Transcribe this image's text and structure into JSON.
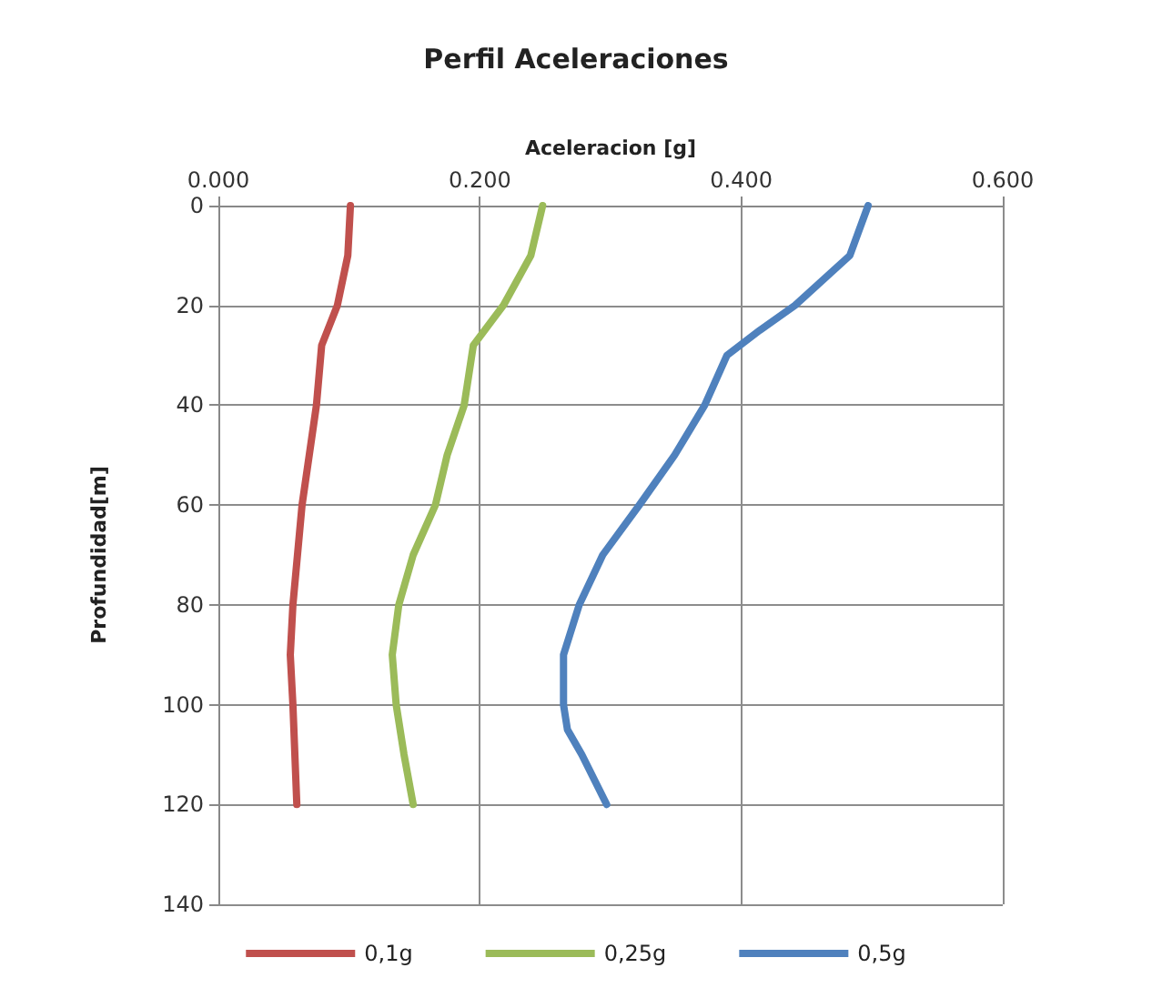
{
  "chart_data": {
    "type": "line",
    "title": "Perfil Aceleraciones",
    "xlabel": "Aceleracion [g]",
    "ylabel": "Profundidad[m]",
    "xlim": [
      0,
      0.6
    ],
    "xticks": [
      {
        "value": 0,
        "label": "0.000"
      },
      {
        "value": 0.2,
        "label": "0.200"
      },
      {
        "value": 0.4,
        "label": "0.400"
      },
      {
        "value": 0.6,
        "label": "0.600"
      }
    ],
    "ylim": [
      140,
      0
    ],
    "yticks": [
      0,
      20,
      40,
      60,
      80,
      100,
      120,
      140
    ],
    "grid": true,
    "legend": "bottom",
    "marker": "none",
    "line_style": "solid",
    "series": [
      {
        "name": "0,1g",
        "color": "#c0504d",
        "x": [
          0.101,
          0.099,
          0.091,
          0.079,
          0.075,
          0.064,
          0.057,
          0.055,
          0.057,
          0.06
        ],
        "values": [
          0,
          10,
          20,
          28,
          40,
          60,
          80,
          90,
          100,
          120
        ]
      },
      {
        "name": "0,25g",
        "color": "#9bbb59",
        "x": [
          0.248,
          0.239,
          0.218,
          0.195,
          0.188,
          0.175,
          0.166,
          0.149,
          0.138,
          0.133,
          0.136,
          0.142,
          0.149
        ],
        "values": [
          0,
          10,
          20,
          28,
          40,
          50,
          60,
          70,
          80,
          90,
          100,
          110,
          120
        ]
      },
      {
        "name": "0,5g",
        "color": "#4f81bd",
        "x": [
          0.497,
          0.483,
          0.441,
          0.414,
          0.389,
          0.372,
          0.349,
          0.322,
          0.294,
          0.276,
          0.264,
          0.264,
          0.267,
          0.278,
          0.297
        ],
        "values": [
          0,
          10,
          20,
          25,
          30,
          40,
          50,
          60,
          70,
          80,
          90,
          100,
          105,
          110,
          120
        ]
      }
    ]
  }
}
